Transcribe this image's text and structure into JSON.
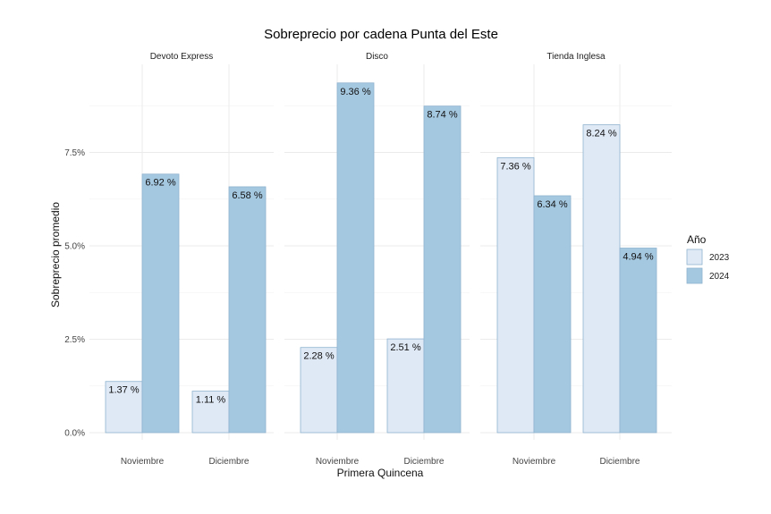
{
  "chart_data": {
    "type": "bar",
    "title": "Sobreprecio por cadena Punta del Este",
    "xlabel": "Primera Quincena",
    "ylabel": "Sobreprecio promedio",
    "ylim": [
      0,
      9.5
    ],
    "yticks": [
      "0.0%",
      "2.5%",
      "5.0%",
      "7.5%"
    ],
    "ytick_values": [
      0,
      2.5,
      5.0,
      7.5
    ],
    "grid": true,
    "legend": {
      "title": "Año",
      "position": "right"
    },
    "colors": {
      "2023": "#dfe9f6",
      "2024": "#a5c8e1",
      "bar_border": "#8fb3cf"
    },
    "facets": [
      {
        "name": "Devoto Express",
        "categories": [
          "Noviembre",
          "Diciembre"
        ],
        "series": [
          {
            "name": "2023",
            "values": [
              1.37,
              1.11
            ],
            "labels": [
              "1.37 %",
              "1.11 %"
            ]
          },
          {
            "name": "2024",
            "values": [
              6.92,
              6.58
            ],
            "labels": [
              "6.92 %",
              "6.58 %"
            ]
          }
        ]
      },
      {
        "name": "Disco",
        "categories": [
          "Noviembre",
          "Diciembre"
        ],
        "series": [
          {
            "name": "2023",
            "values": [
              2.28,
              2.51
            ],
            "labels": [
              "2.28 %",
              "2.51 %"
            ]
          },
          {
            "name": "2024",
            "values": [
              9.36,
              8.74
            ],
            "labels": [
              "9.36 %",
              "8.74 %"
            ]
          }
        ]
      },
      {
        "name": "Tienda Inglesa",
        "categories": [
          "Noviembre",
          "Diciembre"
        ],
        "series": [
          {
            "name": "2023",
            "values": [
              7.36,
              8.24
            ],
            "labels": [
              "7.36 %",
              "8.24 %"
            ]
          },
          {
            "name": "2024",
            "values": [
              6.34,
              4.94
            ],
            "labels": [
              "6.34 %",
              "4.94 %"
            ]
          }
        ]
      }
    ]
  }
}
